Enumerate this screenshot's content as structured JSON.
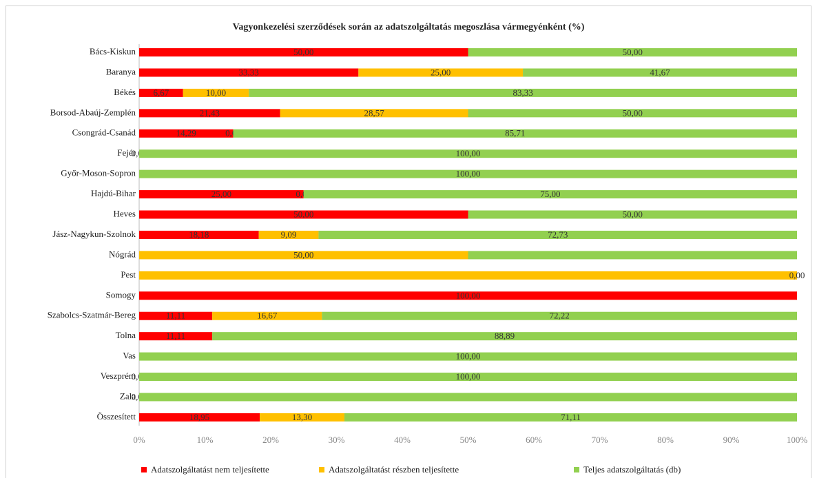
{
  "chart_data": {
    "type": "bar",
    "stacked": "percent",
    "orientation": "horizontal",
    "title": "Vagyonkezelési szerződések során az adatszolgáltatás megoszlása vármegyénként (%)",
    "categories": [
      "Bács-Kiskun",
      "Baranya",
      "Békés",
      "Borsod-Abaúj-Zemplén",
      "Csongrád-Csanád",
      "Fejér",
      "Győr-Moson-Sopron",
      "Hajdú-Bihar",
      "Heves",
      "Jász-Nagykun-Szolnok",
      "Nógrád",
      "Pest",
      "Somogy",
      "Szabolcs-Szatmár-Bereg",
      "Tolna",
      "Vas",
      "Veszprém",
      "Zala",
      "Összesített"
    ],
    "series": [
      {
        "name": "Adatszolgáltatást nem teljesítette",
        "color": "#ff0000",
        "values": [
          50,
          33.33,
          6.67,
          21.43,
          14.29,
          0,
          null,
          25,
          50,
          18.18,
          null,
          null,
          100,
          11.11,
          11.11,
          null,
          0,
          0,
          18.95
        ],
        "value_labels": [
          "50,00",
          "33,33",
          "6,67",
          "21,43",
          "14,29",
          "0,00",
          null,
          "25,00",
          "50,00",
          "18,18",
          null,
          null,
          "100,00",
          "11,11",
          "11,11",
          null,
          "0,00",
          "0,00",
          "18,95"
        ]
      },
      {
        "name": "Adatszolgáltatást részben teljesítette",
        "color": "#ffc000",
        "values": [
          null,
          25,
          10,
          28.57,
          0,
          null,
          null,
          0,
          null,
          9.09,
          50,
          100,
          null,
          16.67,
          null,
          null,
          null,
          null,
          13.3
        ],
        "value_labels": [
          null,
          "25,00",
          "10,00",
          "28,57",
          "0,00",
          null,
          null,
          "0,00",
          null,
          "9,09",
          "50,00",
          null,
          null,
          "16,67",
          null,
          null,
          null,
          null,
          "13,30"
        ]
      },
      {
        "name": "Teljes adatszolgáltatás (db)",
        "color": "#92d050",
        "values": [
          50,
          41.67,
          83.33,
          50,
          85.71,
          100,
          100,
          75,
          50,
          72.73,
          50,
          0,
          null,
          72.22,
          88.89,
          100,
          100,
          100,
          71.11
        ],
        "value_labels": [
          "50,00",
          "41,67",
          "83,33",
          "50,00",
          "85,71",
          "100,00",
          "100,00",
          "75,00",
          "50,00",
          "72,73",
          null,
          "0,00",
          null,
          "72,22",
          "88,89",
          "100,00",
          "100,00",
          null,
          "71,11"
        ]
      }
    ],
    "xlim": [
      0,
      100
    ],
    "xticks": [
      {
        "value": 0,
        "label": "0%"
      },
      {
        "value": 10,
        "label": "10%"
      },
      {
        "value": 20,
        "label": "20%"
      },
      {
        "value": 30,
        "label": "30%"
      },
      {
        "value": 40,
        "label": "40%"
      },
      {
        "value": 50,
        "label": "50%"
      },
      {
        "value": 60,
        "label": "60%"
      },
      {
        "value": 70,
        "label": "70%"
      },
      {
        "value": 80,
        "label": "80%"
      },
      {
        "value": 90,
        "label": "90%"
      },
      {
        "value": 100,
        "label": "100%"
      }
    ],
    "grid": false,
    "legend": "bottom"
  }
}
